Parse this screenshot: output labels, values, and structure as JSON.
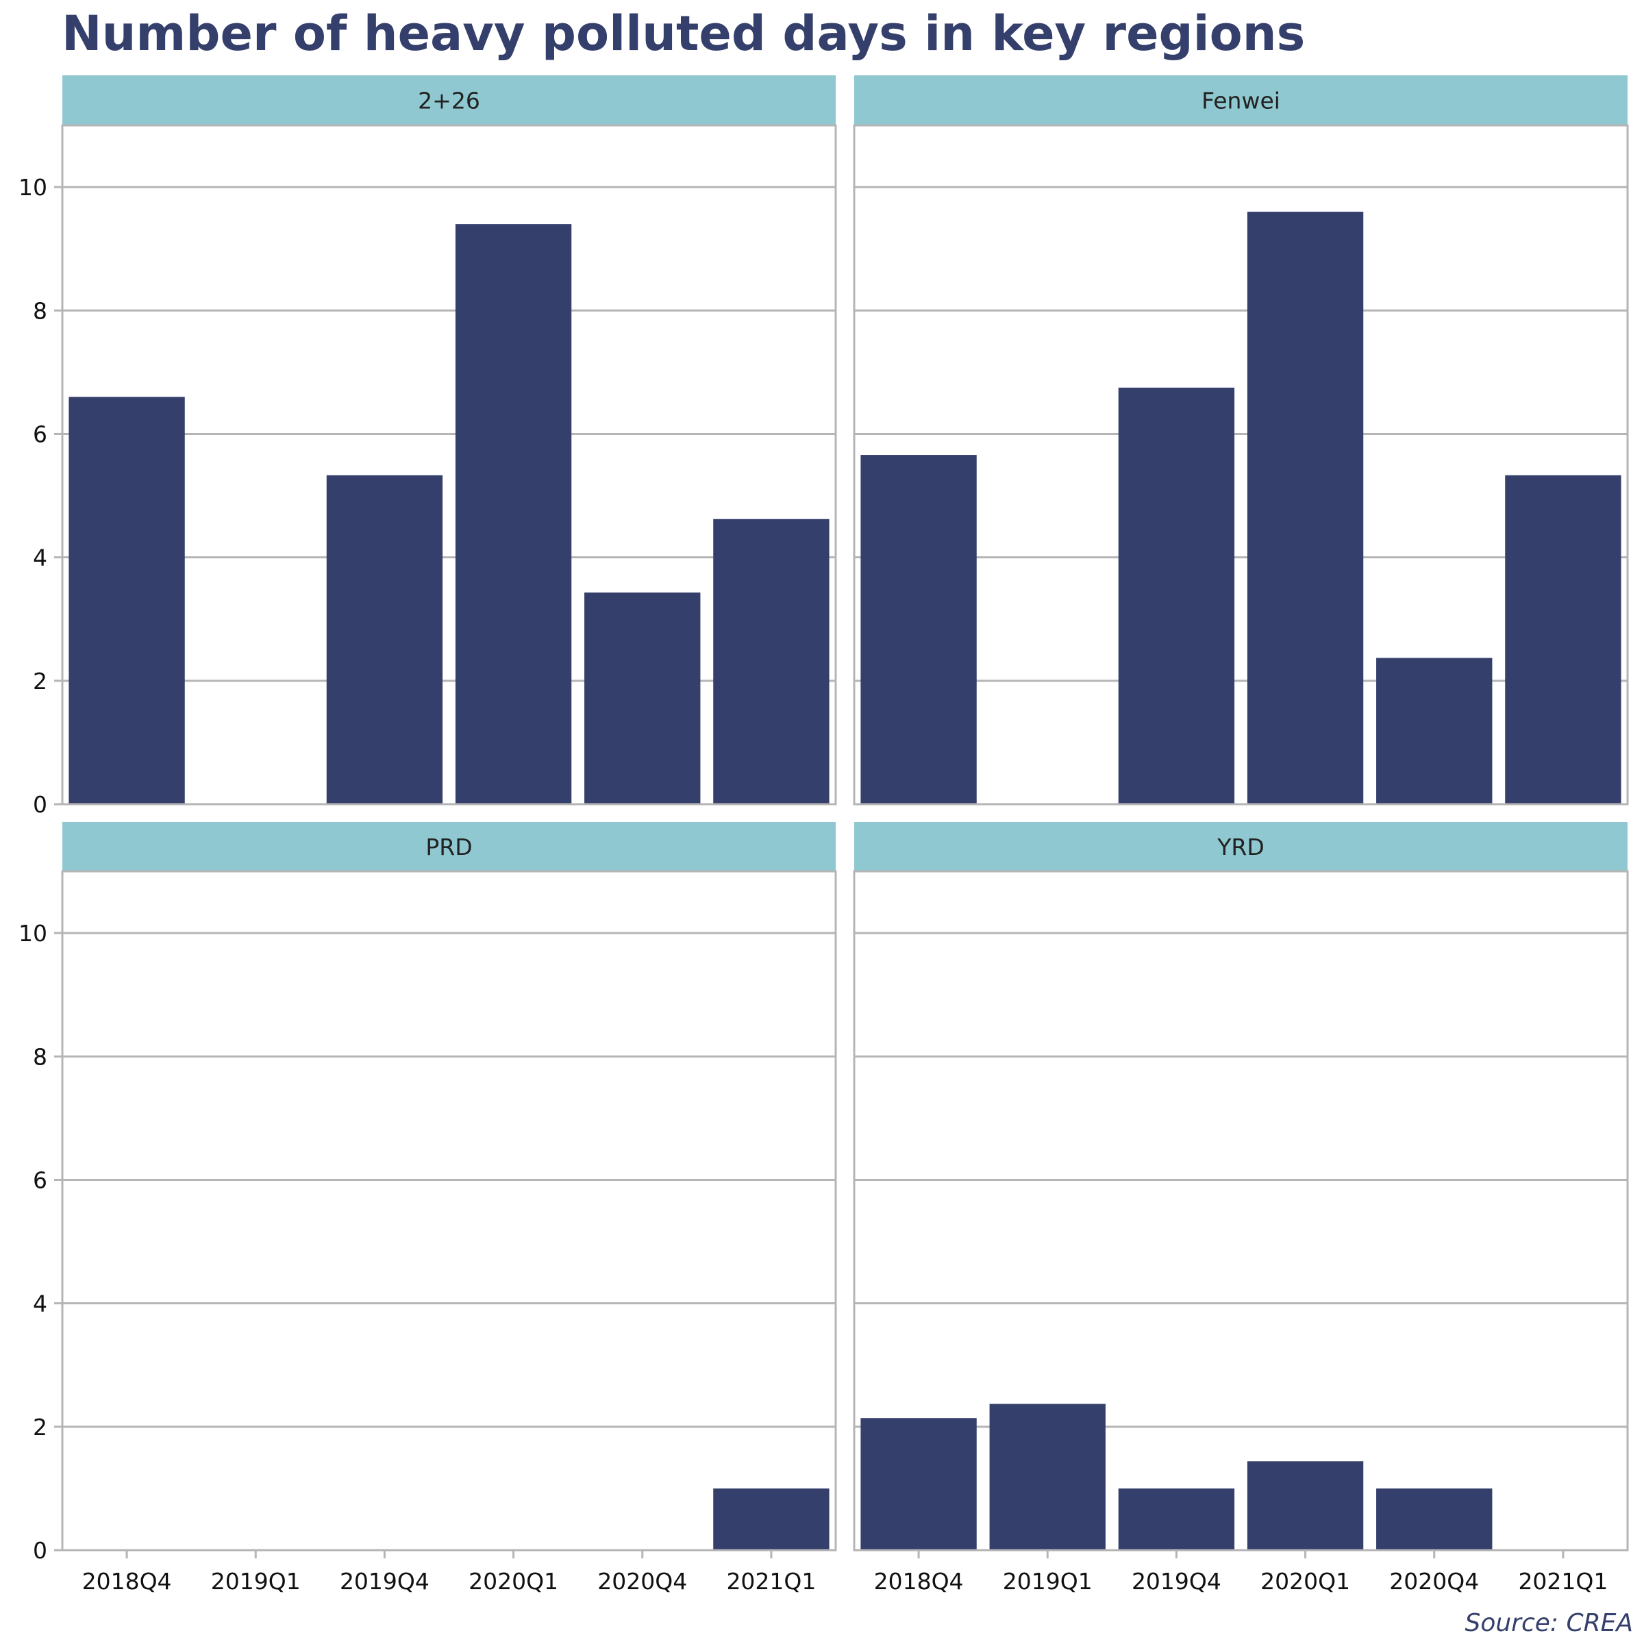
{
  "colors": {
    "bar": "#343f6b",
    "strip": "#8fc8d0",
    "grid": "#b5b5b5",
    "title": "#343f6b"
  },
  "source": "Source: CREA",
  "chart_data": {
    "type": "bar",
    "title": "Number of heavy polluted days in key regions",
    "categories": [
      "2018Q4",
      "2019Q1",
      "2019Q4",
      "2020Q1",
      "2020Q4",
      "2021Q1"
    ],
    "ylim": [
      0,
      11
    ],
    "yticks": [
      0,
      2,
      4,
      6,
      8,
      10
    ],
    "grid": true,
    "facets": [
      {
        "name": "2+26",
        "values": [
          6.6,
          0,
          5.33,
          9.4,
          3.43,
          4.62
        ]
      },
      {
        "name": "Fenwei",
        "values": [
          5.66,
          0,
          6.75,
          9.6,
          2.37,
          5.33
        ]
      },
      {
        "name": "PRD",
        "values": [
          0,
          0,
          0,
          0,
          0,
          1.0
        ]
      },
      {
        "name": "YRD",
        "values": [
          2.14,
          2.37,
          1.0,
          1.44,
          1.0,
          0
        ]
      }
    ]
  }
}
